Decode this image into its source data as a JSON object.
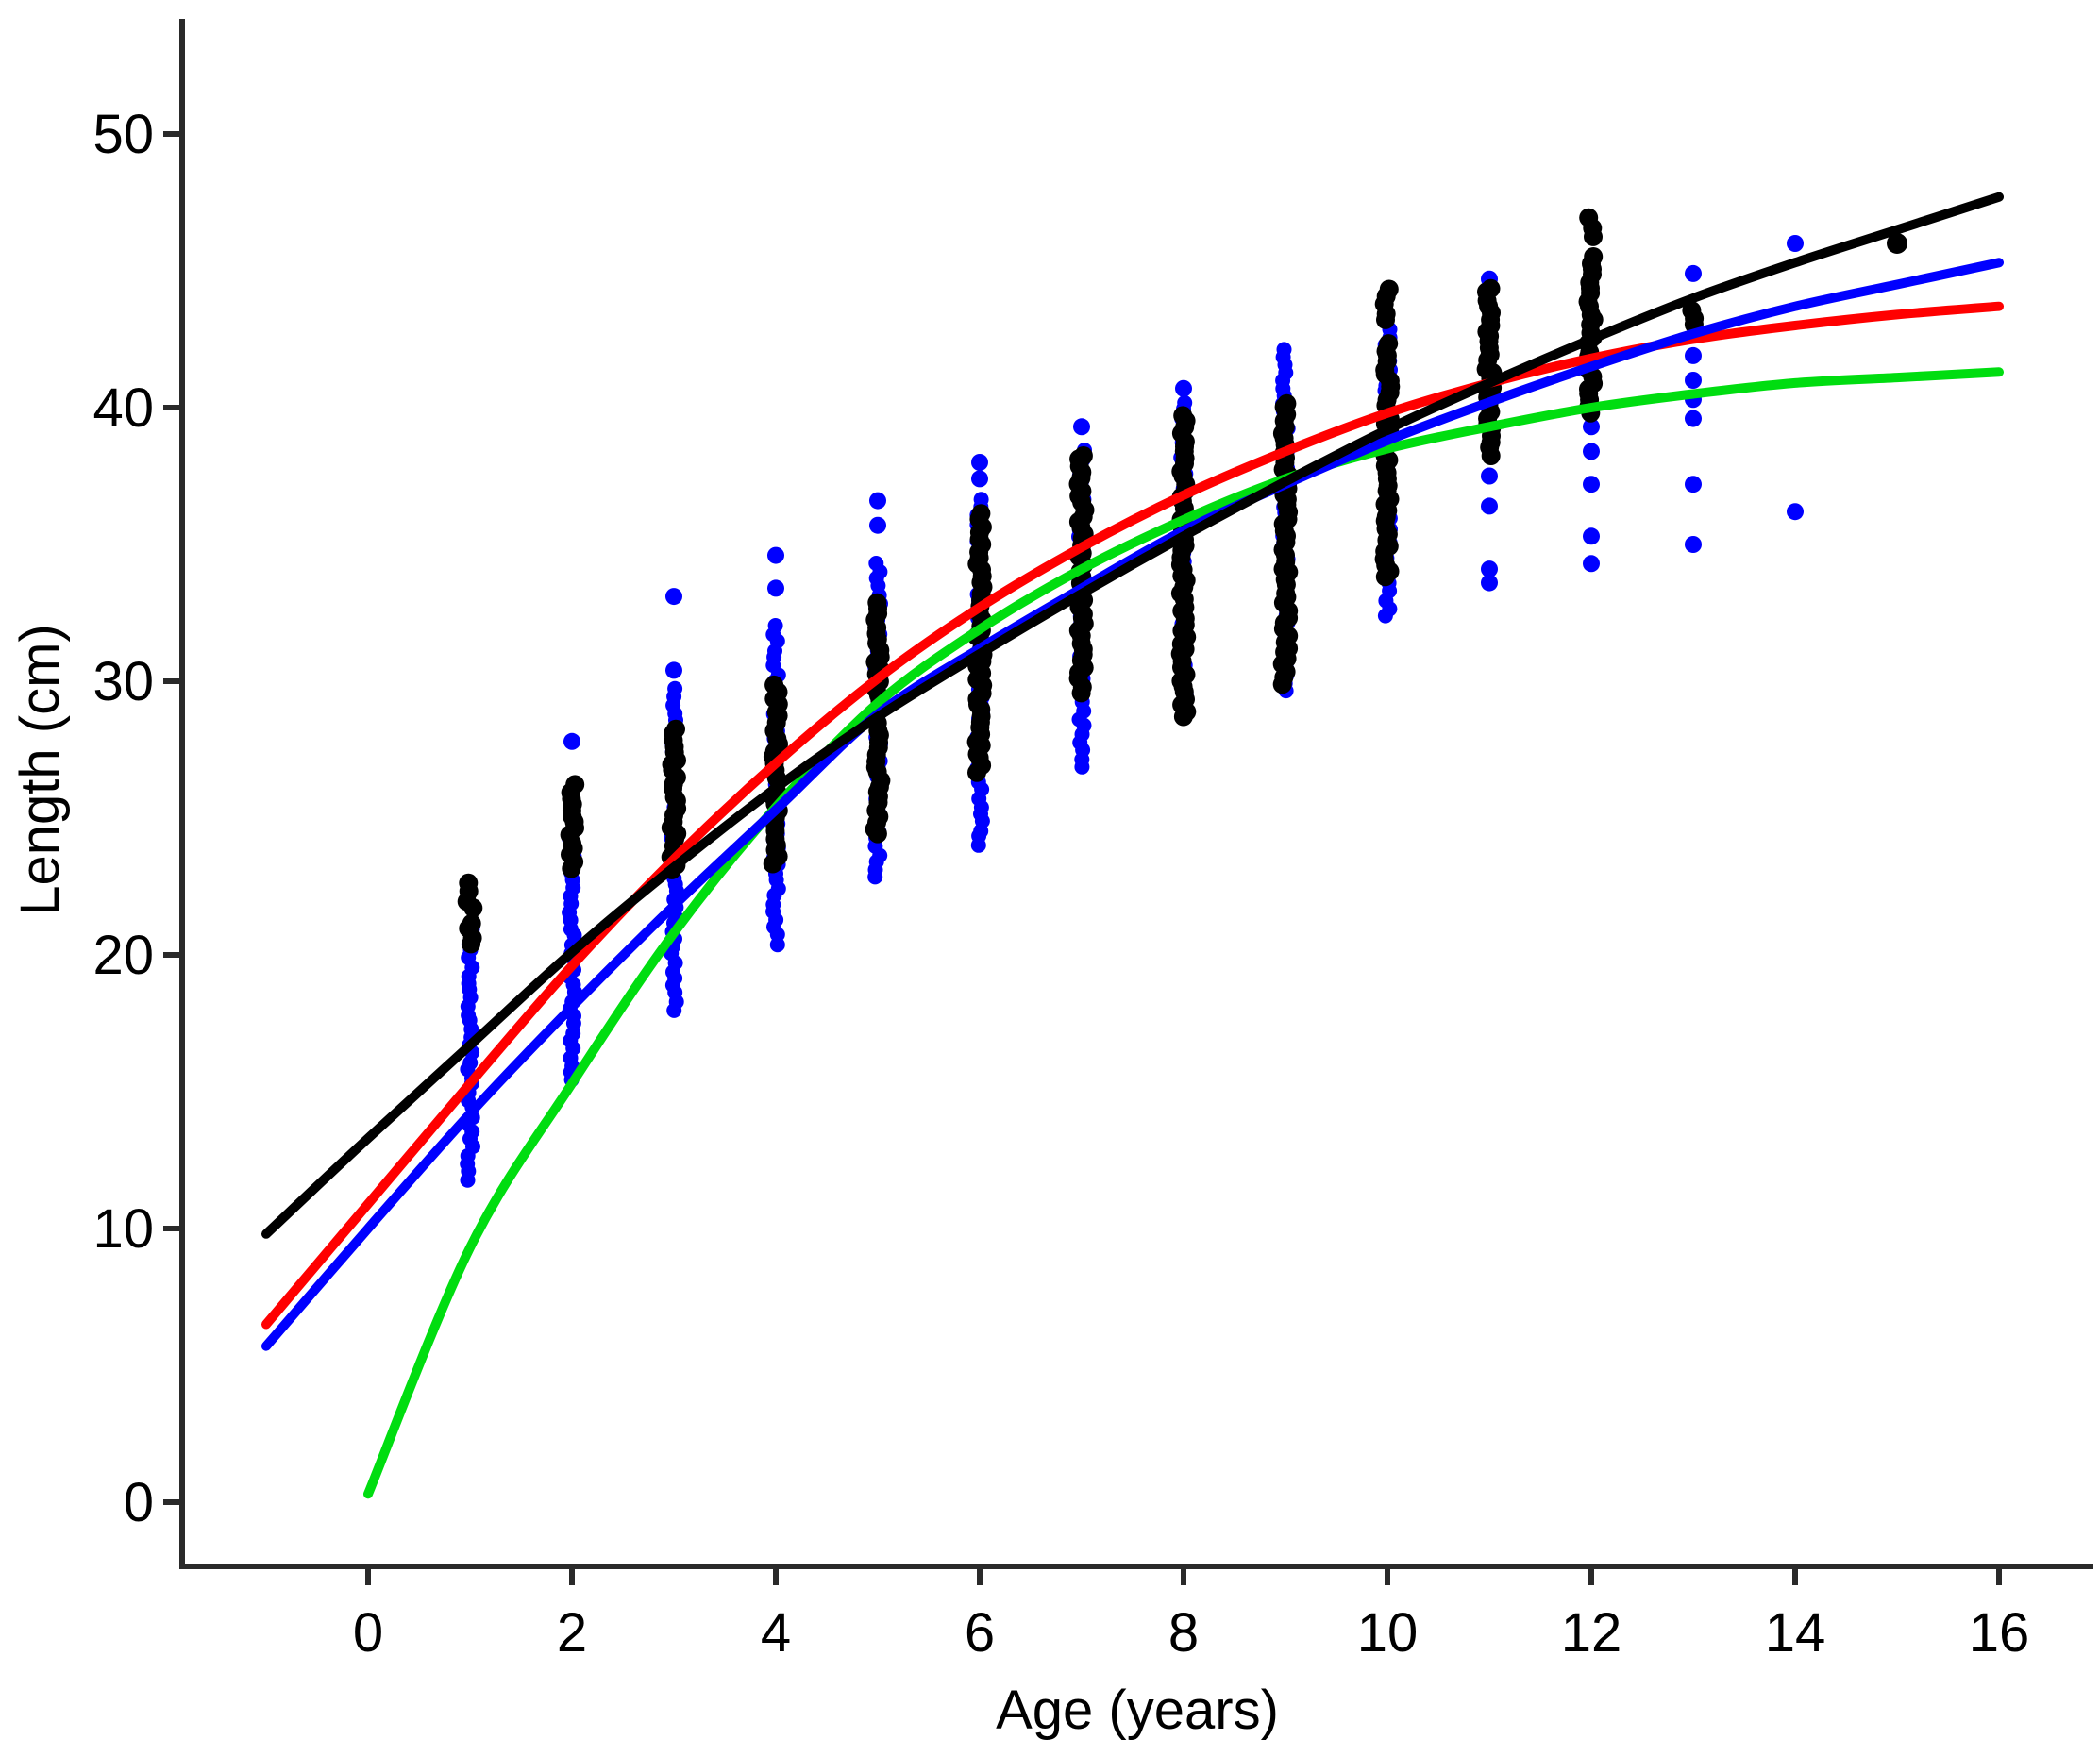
{
  "chart_data": {
    "type": "scatter",
    "title": "",
    "xlabel": "Age (years)",
    "ylabel": "Length (cm)",
    "xlim": [
      -1.85,
      17.0
    ],
    "ylim": [
      -3.6,
      52.5
    ],
    "x_ticks": [
      0,
      2,
      4,
      6,
      8,
      10,
      12,
      14,
      16
    ],
    "y_ticks": [
      0,
      10,
      20,
      30,
      40,
      50
    ],
    "grid": false,
    "legend": "none",
    "axis_color": "#2a2a2a",
    "point_series": [
      {
        "name": "observed lengths (blue sample)",
        "color": "#0000ff",
        "marker_radius": 8,
        "strip_step_cm": 0.28,
        "x_jitter": 3,
        "clusters": [
          {
            "age": 1,
            "segments": [
              [
                11.8,
                21.0
              ]
            ]
          },
          {
            "age": 2,
            "segments": [
              [
                15.4,
                24.2
              ]
            ]
          },
          {
            "age": 3,
            "segments": [
              [
                18.0,
                29.7
              ]
            ]
          },
          {
            "age": 4,
            "segments": [
              [
                20.4,
                32.0
              ]
            ]
          },
          {
            "age": 5,
            "segments": [
              [
                22.8,
                34.3
              ]
            ]
          },
          {
            "age": 6,
            "segments": [
              [
                24.0,
                36.6
              ]
            ]
          },
          {
            "age": 7,
            "segments": [
              [
                26.9,
                38.4
              ]
            ]
          },
          {
            "age": 8,
            "segments": [
              [
                28.9,
                40.2
              ]
            ]
          },
          {
            "age": 9,
            "segments": [
              [
                29.6,
                42.1
              ]
            ]
          },
          {
            "age": 10,
            "segments": [
              [
                32.4,
                42.9
              ]
            ]
          },
          {
            "age": 11,
            "segments": []
          },
          {
            "age": 12,
            "segments": []
          }
        ],
        "points": [
          [
            2,
            27.8
          ],
          [
            3,
            33.1
          ],
          [
            3,
            30.4
          ],
          [
            4,
            34.6
          ],
          [
            4,
            33.4
          ],
          [
            5,
            36.6
          ],
          [
            5,
            35.7
          ],
          [
            6,
            38.0
          ],
          [
            6,
            37.4
          ],
          [
            7,
            39.3
          ],
          [
            8,
            40.7
          ],
          [
            11,
            44.7
          ],
          [
            11,
            37.5
          ],
          [
            11,
            36.4
          ],
          [
            11,
            34.1
          ],
          [
            11,
            33.6
          ],
          [
            12,
            39.3
          ],
          [
            12,
            38.4
          ],
          [
            12,
            37.2
          ],
          [
            12,
            35.3
          ],
          [
            12,
            34.3
          ],
          [
            13,
            44.9
          ],
          [
            13,
            41.9
          ],
          [
            13,
            41.0
          ],
          [
            13,
            40.3
          ],
          [
            13,
            39.6
          ],
          [
            13,
            37.2
          ],
          [
            13,
            35.0
          ],
          [
            14,
            46.0
          ],
          [
            14,
            36.2
          ]
        ]
      },
      {
        "name": "observed lengths (black sample)",
        "color": "#000000",
        "marker_radius": 10,
        "strip_step_cm": 0.22,
        "x_jitter": 3.5,
        "clusters": [
          {
            "age": 1,
            "segments": [
              [
                20.4,
                21.2
              ],
              [
                21.7,
                22.6
              ]
            ]
          },
          {
            "age": 2,
            "segments": [
              [
                23.2,
                26.2
              ]
            ]
          },
          {
            "age": 3,
            "segments": [
              [
                23.1,
                28.3
              ]
            ]
          },
          {
            "age": 4,
            "segments": [
              [
                23.3,
                26.0
              ],
              [
                26.5,
                29.9
              ]
            ]
          },
          {
            "age": 5,
            "segments": [
              [
                24.4,
                32.9
              ]
            ]
          },
          {
            "age": 6,
            "segments": [
              [
                26.7,
                36.1
              ]
            ]
          },
          {
            "age": 7,
            "segments": [
              [
                29.6,
                38.3
              ]
            ]
          },
          {
            "age": 8,
            "segments": [
              [
                28.7,
                39.7
              ]
            ]
          },
          {
            "age": 9,
            "segments": [
              [
                29.9,
                40.2
              ]
            ]
          },
          {
            "age": 10,
            "segments": [
              [
                33.8,
                42.3
              ],
              [
                43.2,
                44.3
              ]
            ]
          },
          {
            "age": 11,
            "segments": [
              [
                38.3,
                44.4
              ]
            ]
          },
          {
            "age": 12,
            "segments": [
              [
                39.8,
                45.5
              ],
              [
                46.3,
                46.9
              ]
            ]
          },
          {
            "age": 13,
            "segments": [
              [
                43.0,
                43.6
              ]
            ]
          }
        ],
        "points": [
          [
            15,
            46.0
          ]
        ]
      }
    ],
    "curve_series": [
      {
        "name": "green growth curve",
        "color": "#00dd10",
        "points": [
          [
            0,
            0.3
          ],
          [
            1,
            9.3
          ],
          [
            2,
            15.3
          ],
          [
            3,
            20.8
          ],
          [
            4,
            25.4
          ],
          [
            5,
            29.2
          ],
          [
            6,
            31.9
          ],
          [
            7,
            34.1
          ],
          [
            8,
            35.9
          ],
          [
            9,
            37.4
          ],
          [
            10,
            38.5
          ],
          [
            11,
            39.3
          ],
          [
            12,
            40.0
          ],
          [
            13,
            40.5
          ],
          [
            14,
            40.9
          ],
          [
            15,
            41.1
          ],
          [
            16,
            41.3
          ]
        ]
      },
      {
        "name": "red growth curve",
        "color": "#ff0000",
        "points": [
          [
            -1,
            6.5
          ],
          [
            0,
            10.9
          ],
          [
            1,
            15.3
          ],
          [
            2,
            19.6
          ],
          [
            3,
            23.5
          ],
          [
            4,
            27.0
          ],
          [
            5,
            30.1
          ],
          [
            6,
            32.7
          ],
          [
            7,
            34.9
          ],
          [
            8,
            36.8
          ],
          [
            9,
            38.4
          ],
          [
            10,
            39.8
          ],
          [
            11,
            40.9
          ],
          [
            12,
            41.8
          ],
          [
            13,
            42.5
          ],
          [
            14,
            43.0
          ],
          [
            15,
            43.4
          ],
          [
            16,
            43.7
          ]
        ]
      },
      {
        "name": "blue growth curve",
        "color": "#0000ff",
        "points": [
          [
            -1,
            5.7
          ],
          [
            0,
            10.0
          ],
          [
            1,
            14.2
          ],
          [
            2,
            18.1
          ],
          [
            3,
            21.8
          ],
          [
            4,
            25.3
          ],
          [
            5,
            28.8
          ],
          [
            6,
            31.2
          ],
          [
            7,
            33.4
          ],
          [
            8,
            35.5
          ],
          [
            9,
            37.2
          ],
          [
            10,
            38.8
          ],
          [
            11,
            40.2
          ],
          [
            12,
            41.5
          ],
          [
            13,
            42.7
          ],
          [
            14,
            43.7
          ],
          [
            15,
            44.5
          ],
          [
            16,
            45.3
          ]
        ]
      },
      {
        "name": "black growth curve",
        "color": "#000000",
        "points": [
          [
            -1,
            9.8
          ],
          [
            0,
            13.3
          ],
          [
            1,
            16.7
          ],
          [
            2,
            20.1
          ],
          [
            3,
            23.2
          ],
          [
            4,
            26.1
          ],
          [
            5,
            28.7
          ],
          [
            6,
            31.0
          ],
          [
            7,
            33.2
          ],
          [
            8,
            35.3
          ],
          [
            9,
            37.3
          ],
          [
            10,
            39.2
          ],
          [
            11,
            40.9
          ],
          [
            12,
            42.5
          ],
          [
            13,
            44.0
          ],
          [
            14,
            45.3
          ],
          [
            15,
            46.5
          ],
          [
            16,
            47.7
          ]
        ]
      }
    ]
  }
}
